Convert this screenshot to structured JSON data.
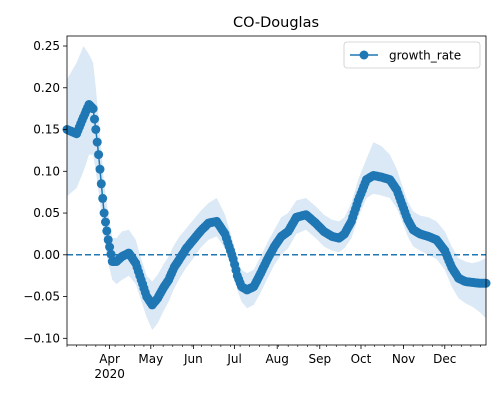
{
  "chart_data": {
    "type": "line",
    "title": "CO-Douglas",
    "xlabel": "",
    "ylabel": "",
    "x_range": [
      "2020-03-01",
      "2020-12-31"
    ],
    "ylim": [
      -0.108,
      0.262
    ],
    "yticks": [
      -0.1,
      -0.05,
      0.0,
      0.05,
      0.1,
      0.15,
      0.2,
      0.25
    ],
    "ytick_labels": [
      "−0.10",
      "−0.05",
      "0.00",
      "0.05",
      "0.10",
      "0.15",
      "0.20",
      "0.25"
    ],
    "xticks": [
      {
        "date": "2020-04-01",
        "label": "Apr",
        "sublabel": "2020"
      },
      {
        "date": "2020-05-01",
        "label": "May"
      },
      {
        "date": "2020-06-01",
        "label": "Jun"
      },
      {
        "date": "2020-07-01",
        "label": "Jul"
      },
      {
        "date": "2020-08-01",
        "label": "Aug"
      },
      {
        "date": "2020-09-01",
        "label": "Sep"
      },
      {
        "date": "2020-10-01",
        "label": "Oct"
      },
      {
        "date": "2020-11-01",
        "label": "Nov"
      },
      {
        "date": "2020-12-01",
        "label": "Dec"
      }
    ],
    "reference_line": {
      "y": 0,
      "style": "dashed",
      "color": "#1f77b4"
    },
    "legend": {
      "position": "upper right",
      "entries": [
        "growth_rate"
      ]
    },
    "series": [
      {
        "name": "growth_rate",
        "color": "#1f77b4",
        "band_color": "#dbe8f5",
        "x": [
          "2020-03-01",
          "2020-03-08",
          "2020-03-13",
          "2020-03-17",
          "2020-03-20",
          "2020-03-22",
          "2020-03-24",
          "2020-03-26",
          "2020-03-28",
          "2020-03-31",
          "2020-04-03",
          "2020-04-06",
          "2020-04-10",
          "2020-04-15",
          "2020-04-20",
          "2020-04-24",
          "2020-04-28",
          "2020-05-02",
          "2020-05-06",
          "2020-05-10",
          "2020-05-14",
          "2020-05-18",
          "2020-05-22",
          "2020-05-27",
          "2020-06-01",
          "2020-06-06",
          "2020-06-12",
          "2020-06-18",
          "2020-06-24",
          "2020-06-30",
          "2020-07-03",
          "2020-07-06",
          "2020-07-10",
          "2020-07-15",
          "2020-07-20",
          "2020-07-25",
          "2020-07-30",
          "2020-08-04",
          "2020-08-09",
          "2020-08-15",
          "2020-08-22",
          "2020-08-29",
          "2020-09-04",
          "2020-09-10",
          "2020-09-15",
          "2020-09-19",
          "2020-09-24",
          "2020-09-29",
          "2020-10-05",
          "2020-10-10",
          "2020-10-16",
          "2020-10-22",
          "2020-10-27",
          "2020-10-31",
          "2020-11-04",
          "2020-11-08",
          "2020-11-13",
          "2020-11-19",
          "2020-11-25",
          "2020-12-01",
          "2020-12-06",
          "2020-12-11",
          "2020-12-16",
          "2020-12-21",
          "2020-12-26",
          "2020-12-31"
        ],
        "values": [
          0.15,
          0.145,
          0.165,
          0.18,
          0.175,
          0.15,
          0.12,
          0.085,
          0.05,
          0.018,
          -0.008,
          -0.008,
          -0.002,
          0.002,
          -0.01,
          -0.03,
          -0.05,
          -0.06,
          -0.052,
          -0.04,
          -0.03,
          -0.015,
          -0.005,
          0.008,
          0.018,
          0.028,
          0.038,
          0.04,
          0.025,
          -0.005,
          -0.025,
          -0.038,
          -0.042,
          -0.038,
          -0.022,
          -0.005,
          0.01,
          0.022,
          0.028,
          0.045,
          0.048,
          0.038,
          0.028,
          0.022,
          0.02,
          0.025,
          0.04,
          0.065,
          0.09,
          0.095,
          0.093,
          0.09,
          0.078,
          0.06,
          0.042,
          0.03,
          0.025,
          0.022,
          0.018,
          0.005,
          -0.015,
          -0.028,
          -0.032,
          -0.033,
          -0.034,
          -0.034
        ],
        "lower": [
          0.07,
          0.08,
          0.1,
          0.12,
          0.12,
          0.1,
          0.075,
          0.05,
          0.02,
          -0.01,
          -0.03,
          -0.035,
          -0.03,
          -0.025,
          -0.035,
          -0.055,
          -0.075,
          -0.09,
          -0.082,
          -0.068,
          -0.056,
          -0.04,
          -0.028,
          -0.015,
          -0.004,
          0.008,
          0.018,
          0.022,
          0.008,
          -0.022,
          -0.042,
          -0.056,
          -0.064,
          -0.06,
          -0.045,
          -0.028,
          -0.012,
          0.0,
          0.008,
          0.025,
          0.03,
          0.02,
          0.01,
          0.005,
          0.003,
          0.008,
          0.02,
          0.045,
          0.068,
          0.073,
          0.071,
          0.068,
          0.056,
          0.04,
          0.022,
          0.01,
          0.005,
          0.0,
          -0.005,
          -0.018,
          -0.038,
          -0.052,
          -0.058,
          -0.062,
          -0.068,
          -0.076
        ],
        "upper": [
          0.21,
          0.23,
          0.25,
          0.24,
          0.23,
          0.2,
          0.165,
          0.125,
          0.085,
          0.05,
          0.02,
          0.02,
          0.028,
          0.03,
          0.018,
          -0.005,
          -0.025,
          -0.032,
          -0.024,
          -0.012,
          -0.002,
          0.012,
          0.022,
          0.032,
          0.042,
          0.052,
          0.062,
          0.068,
          0.048,
          0.015,
          -0.006,
          -0.018,
          -0.022,
          -0.018,
          -0.002,
          0.015,
          0.03,
          0.045,
          0.05,
          0.065,
          0.068,
          0.058,
          0.048,
          0.042,
          0.04,
          0.045,
          0.062,
          0.09,
          0.115,
          0.135,
          0.13,
          0.12,
          0.103,
          0.083,
          0.064,
          0.052,
          0.047,
          0.045,
          0.04,
          0.028,
          0.01,
          -0.004,
          -0.008,
          -0.01,
          -0.008,
          -0.004
        ]
      }
    ]
  }
}
